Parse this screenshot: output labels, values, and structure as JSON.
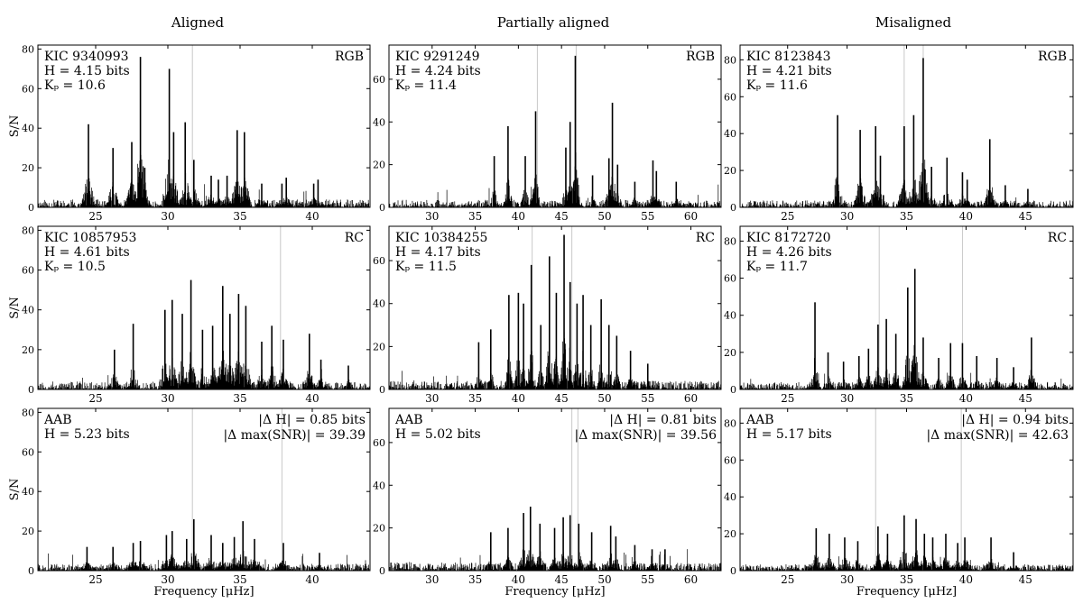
{
  "columns": [
    "Aligned",
    "Partially aligned",
    "Misaligned"
  ],
  "chart_data": {
    "type": "line",
    "description": "Power spectra (S/N vs frequency) of red-giant stars in a 3x3 grid: rows RGB, RC and AAB; columns aligned, partially aligned, misaligned.",
    "xlabel": "Frequency [μHz]",
    "ylabel": "S/N",
    "panels": [
      {
        "row": 0,
        "col": 0,
        "labels": [
          "KIC 9340993",
          "H = 4.15 bits",
          "Kₚ = 10.6"
        ],
        "tag": "RGB",
        "xlim": [
          21,
          44
        ],
        "ylim": [
          0,
          82
        ],
        "xticks": [
          25,
          30,
          35,
          40
        ],
        "yticks": [
          0,
          20,
          40,
          60,
          80
        ],
        "vlines": [
          31.7
        ],
        "peaks": [
          [
            24.5,
            42
          ],
          [
            26.2,
            30
          ],
          [
            27.5,
            33
          ],
          [
            28.1,
            76
          ],
          [
            28.4,
            20
          ],
          [
            30.1,
            70
          ],
          [
            30.4,
            38
          ],
          [
            31.2,
            43
          ],
          [
            31.8,
            24
          ],
          [
            33.0,
            16
          ],
          [
            33.5,
            14
          ],
          [
            34.1,
            16
          ],
          [
            34.8,
            39
          ],
          [
            35.3,
            38
          ],
          [
            36.5,
            12
          ],
          [
            37.9,
            12
          ],
          [
            38.2,
            15
          ],
          [
            40.1,
            12
          ],
          [
            40.4,
            14
          ]
        ],
        "noise": 4,
        "smear": 0.55,
        "seed": 11
      },
      {
        "row": 0,
        "col": 1,
        "labels": [
          "KIC 9291249",
          "H = 4.24 bits",
          "Kₚ = 11.4"
        ],
        "tag": "RGB",
        "xlim": [
          25,
          63.5
        ],
        "ylim": [
          0,
          76
        ],
        "xticks": [
          30,
          35,
          40,
          45,
          50,
          55,
          60
        ],
        "yticks": [
          0,
          20,
          40,
          60
        ],
        "vlines": [
          42.2,
          46.7
        ],
        "peaks": [
          [
            37.2,
            24
          ],
          [
            38.8,
            38
          ],
          [
            40.8,
            24
          ],
          [
            42.0,
            45
          ],
          [
            45.5,
            28
          ],
          [
            46.0,
            40
          ],
          [
            46.6,
            71
          ],
          [
            48.6,
            15
          ],
          [
            50.5,
            23
          ],
          [
            50.9,
            49
          ],
          [
            51.5,
            20
          ],
          [
            53.5,
            12
          ],
          [
            55.6,
            22
          ],
          [
            56.0,
            17
          ],
          [
            58.3,
            12
          ]
        ],
        "noise": 3.5,
        "smear": 0.6,
        "seed": 23
      },
      {
        "row": 0,
        "col": 2,
        "labels": [
          "KIC 8123843",
          "H = 4.21 bits",
          "Kₚ = 11.6"
        ],
        "tag": "RGB",
        "xlim": [
          21,
          49
        ],
        "ylim": [
          0,
          88
        ],
        "xticks": [
          25,
          30,
          35,
          40,
          45
        ],
        "yticks": [
          0,
          20,
          40,
          60,
          80
        ],
        "vlines": [
          34.8,
          36.4
        ],
        "peaks": [
          [
            29.2,
            50
          ],
          [
            31.1,
            42
          ],
          [
            32.4,
            44
          ],
          [
            32.8,
            28
          ],
          [
            34.8,
            44
          ],
          [
            35.6,
            50
          ],
          [
            36.4,
            81
          ],
          [
            37.1,
            22
          ],
          [
            38.4,
            27
          ],
          [
            39.7,
            19
          ],
          [
            40.1,
            15
          ],
          [
            42.0,
            37
          ],
          [
            43.3,
            12
          ],
          [
            45.2,
            10
          ]
        ],
        "noise": 3.8,
        "smear": 0.6,
        "seed": 37
      },
      {
        "row": 1,
        "col": 0,
        "labels": [
          "KIC 10857953",
          "H = 4.61 bits",
          "Kₚ = 10.5"
        ],
        "tag": "RC",
        "xlim": [
          21,
          44
        ],
        "ylim": [
          0,
          82
        ],
        "xticks": [
          25,
          30,
          35,
          40
        ],
        "yticks": [
          0,
          20,
          40,
          60,
          80
        ],
        "vlines": [
          37.8
        ],
        "peaks": [
          [
            26.3,
            20
          ],
          [
            27.6,
            33
          ],
          [
            29.8,
            40
          ],
          [
            30.3,
            45
          ],
          [
            31.0,
            38
          ],
          [
            31.6,
            55
          ],
          [
            32.4,
            30
          ],
          [
            33.1,
            32
          ],
          [
            33.8,
            52
          ],
          [
            34.3,
            38
          ],
          [
            34.9,
            48
          ],
          [
            35.4,
            42
          ],
          [
            36.5,
            24
          ],
          [
            37.2,
            32
          ],
          [
            38.0,
            25
          ],
          [
            39.8,
            28
          ],
          [
            40.6,
            15
          ],
          [
            42.5,
            12
          ]
        ],
        "noise": 4,
        "smear": 0.5,
        "seed": 53
      },
      {
        "row": 1,
        "col": 1,
        "labels": [
          "KIC 10384255",
          "H = 4.17 bits",
          "Kₚ = 11.5"
        ],
        "tag": "RC",
        "xlim": [
          25,
          63.5
        ],
        "ylim": [
          0,
          76
        ],
        "xticks": [
          30,
          35,
          40,
          45,
          50,
          55,
          60
        ],
        "yticks": [
          0,
          20,
          40,
          60
        ],
        "vlines": [
          41.6,
          46.2
        ],
        "peaks": [
          [
            35.4,
            22
          ],
          [
            36.8,
            28
          ],
          [
            38.9,
            44
          ],
          [
            40.0,
            45
          ],
          [
            40.6,
            40
          ],
          [
            41.5,
            58
          ],
          [
            42.6,
            30
          ],
          [
            43.6,
            62
          ],
          [
            44.4,
            45
          ],
          [
            45.3,
            72
          ],
          [
            46.0,
            50
          ],
          [
            46.8,
            40
          ],
          [
            47.5,
            44
          ],
          [
            48.4,
            30
          ],
          [
            49.6,
            42
          ],
          [
            50.5,
            30
          ],
          [
            51.4,
            25
          ],
          [
            53.0,
            18
          ],
          [
            55.0,
            12
          ]
        ],
        "noise": 4,
        "smear": 0.55,
        "seed": 71
      },
      {
        "row": 1,
        "col": 2,
        "labels": [
          "KIC 8172720",
          "H = 4.26 bits",
          "Kₚ = 11.7"
        ],
        "tag": "RC",
        "xlim": [
          21,
          49
        ],
        "ylim": [
          0,
          88
        ],
        "xticks": [
          25,
          30,
          35,
          40,
          45
        ],
        "yticks": [
          0,
          20,
          40,
          60,
          80
        ],
        "vlines": [
          32.7,
          39.7
        ],
        "peaks": [
          [
            27.3,
            47
          ],
          [
            28.4,
            20
          ],
          [
            29.7,
            15
          ],
          [
            31.0,
            18
          ],
          [
            31.8,
            22
          ],
          [
            32.6,
            35
          ],
          [
            33.3,
            38
          ],
          [
            34.1,
            30
          ],
          [
            35.1,
            55
          ],
          [
            35.7,
            65
          ],
          [
            36.4,
            28
          ],
          [
            37.7,
            17
          ],
          [
            38.7,
            25
          ],
          [
            39.7,
            25
          ],
          [
            40.9,
            18
          ],
          [
            42.6,
            17
          ],
          [
            44.0,
            12
          ],
          [
            45.5,
            28
          ]
        ],
        "noise": 4,
        "smear": 0.5,
        "seed": 89
      },
      {
        "row": 2,
        "col": 0,
        "labels": [
          "AAB",
          "H = 5.23 bits"
        ],
        "stats": [
          "|Δ H| = 0.85 bits",
          "|Δ max(SNR)| = 39.39"
        ],
        "xlim": [
          21,
          44
        ],
        "ylim": [
          0,
          82
        ],
        "xticks": [
          25,
          30,
          35,
          40
        ],
        "yticks": [
          0,
          20,
          40,
          60,
          80
        ],
        "vlines": [
          31.7,
          37.9
        ],
        "peaks": [
          [
            24.4,
            12
          ],
          [
            26.2,
            12
          ],
          [
            27.6,
            14
          ],
          [
            28.1,
            15
          ],
          [
            29.9,
            18
          ],
          [
            30.3,
            20
          ],
          [
            31.3,
            16
          ],
          [
            31.8,
            26
          ],
          [
            33.0,
            18
          ],
          [
            33.8,
            14
          ],
          [
            34.6,
            17
          ],
          [
            35.2,
            25
          ],
          [
            36.0,
            16
          ],
          [
            38.0,
            14
          ],
          [
            40.5,
            9
          ]
        ],
        "noise": 3.5,
        "smear": 0.7,
        "seed": 101
      },
      {
        "row": 2,
        "col": 1,
        "labels": [
          "AAB",
          "H = 5.02 bits"
        ],
        "stats": [
          "|Δ H| = 0.81 bits",
          "|Δ max(SNR)| = 39.56"
        ],
        "xlim": [
          25,
          63.5
        ],
        "ylim": [
          0,
          76
        ],
        "xticks": [
          30,
          35,
          40,
          45,
          50,
          55,
          60
        ],
        "yticks": [
          0,
          20,
          40,
          60
        ],
        "vlines": [
          46.2,
          46.9
        ],
        "peaks": [
          [
            36.8,
            18
          ],
          [
            38.8,
            20
          ],
          [
            40.6,
            27
          ],
          [
            41.4,
            30
          ],
          [
            42.5,
            22
          ],
          [
            44.2,
            20
          ],
          [
            45.2,
            25
          ],
          [
            46.0,
            26
          ],
          [
            47.0,
            22
          ],
          [
            48.5,
            18
          ],
          [
            50.7,
            21
          ],
          [
            51.3,
            16
          ],
          [
            53.5,
            12
          ],
          [
            55.5,
            10
          ],
          [
            57.0,
            10
          ]
        ],
        "noise": 3.8,
        "smear": 0.75,
        "seed": 113
      },
      {
        "row": 2,
        "col": 2,
        "labels": [
          "AAB",
          "H = 5.17 bits"
        ],
        "stats": [
          "|Δ H| = 0.94 bits",
          "|Δ max(SNR)| = 42.63"
        ],
        "xlim": [
          21,
          49
        ],
        "ylim": [
          0,
          88
        ],
        "xticks": [
          25,
          30,
          35,
          40,
          45
        ],
        "yticks": [
          0,
          20,
          40,
          60,
          80
        ],
        "vlines": [
          32.4,
          39.6
        ],
        "peaks": [
          [
            27.4,
            23
          ],
          [
            28.5,
            20
          ],
          [
            29.8,
            18
          ],
          [
            30.9,
            16
          ],
          [
            32.6,
            24
          ],
          [
            33.4,
            20
          ],
          [
            34.8,
            30
          ],
          [
            35.8,
            28
          ],
          [
            36.5,
            20
          ],
          [
            37.2,
            18
          ],
          [
            38.3,
            20
          ],
          [
            39.3,
            15
          ],
          [
            39.9,
            18
          ],
          [
            42.1,
            18
          ],
          [
            44.0,
            10
          ]
        ],
        "noise": 3.5,
        "smear": 0.7,
        "seed": 131
      }
    ]
  }
}
